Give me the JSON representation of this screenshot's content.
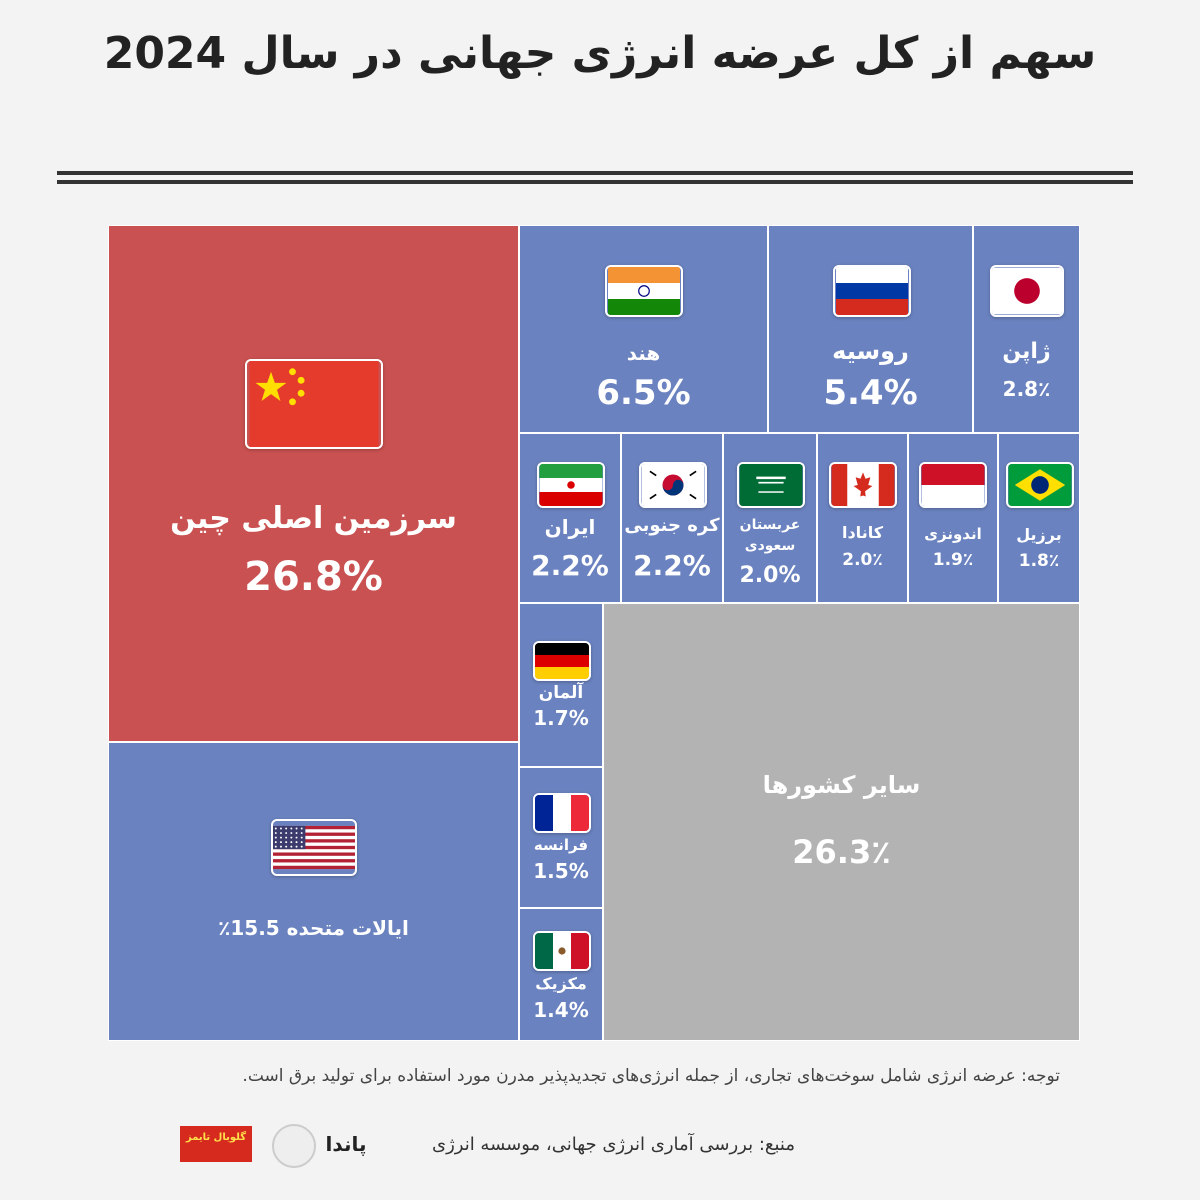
{
  "title": "سهم از کل عرضه انرژی جهانی در سال 2024",
  "colors": {
    "china": "#c95151",
    "country": "#6a82bf",
    "other": "#b3b3b3"
  },
  "chart_data": {
    "type": "treemap",
    "title": "سهم از کل عرضه انرژی جهانی در سال 2024",
    "unit": "%",
    "items": [
      {
        "key": "china",
        "label": "سرزمین اصلی چین",
        "value": 26.8,
        "value_text": "26.8%",
        "flag": "china-flag"
      },
      {
        "key": "usa",
        "label": "ایالات متحده 15.5٪",
        "value": 15.5,
        "value_text": "",
        "flag": "usa-flag"
      },
      {
        "key": "other",
        "label": "سایر کشورها",
        "value": 26.3,
        "value_text": "26.3٪",
        "flag": ""
      },
      {
        "key": "india",
        "label": "هند",
        "value": 6.5,
        "value_text": "6.5%",
        "flag": "india-flag"
      },
      {
        "key": "russia",
        "label": "روسیه",
        "value": 5.4,
        "value_text": "5.4%",
        "flag": "russia-flag"
      },
      {
        "key": "japan",
        "label": "ژاپن",
        "value": 2.8,
        "value_text": "2.8٪",
        "flag": "japan-flag"
      },
      {
        "key": "iran",
        "label": "ایران",
        "value": 2.2,
        "value_text": "2.2%",
        "flag": "iran-flag"
      },
      {
        "key": "korea",
        "label": "کره جنوبی",
        "value": 2.2,
        "value_text": "2.2%",
        "flag": "south-korea-flag"
      },
      {
        "key": "saudi",
        "label": "عربستان سعودی",
        "value": 2.0,
        "value_text": "2.0%",
        "flag": "saudi-arabia-flag"
      },
      {
        "key": "canada",
        "label": "کانادا",
        "value": 2.0,
        "value_text": "2.0٪",
        "flag": "canada-flag"
      },
      {
        "key": "indonesia",
        "label": "اندونزی",
        "value": 1.9,
        "value_text": "1.9٪",
        "flag": "indonesia-flag"
      },
      {
        "key": "brazil",
        "label": "برزیل",
        "value": 1.8,
        "value_text": "1.8٪",
        "flag": "brazil-flag"
      },
      {
        "key": "germany",
        "label": "آلمان",
        "value": 1.7,
        "value_text": "1.7%",
        "flag": "germany-flag"
      },
      {
        "key": "france",
        "label": "فرانسه",
        "value": 1.5,
        "value_text": "1.5%",
        "flag": "france-flag"
      },
      {
        "key": "mexico",
        "label": "مکزیک",
        "value": 1.4,
        "value_text": "1.4%",
        "flag": "mexico-flag"
      }
    ]
  },
  "note": "توجه: عرضه انرژی شامل سوخت‌های تجاری، از جمله انرژی‌های تجدیدپذیر مدرن مورد استفاده برای تولید برق است.",
  "source": "منبع: بررسی آماری انرژی جهانی، موسسه انرژی",
  "logos": {
    "brand": "گلوبال تایمز",
    "panda": "پاندا"
  }
}
